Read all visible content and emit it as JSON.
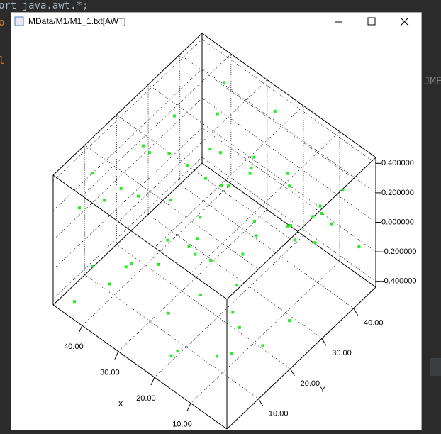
{
  "editor": {
    "fragments": [
      "ort java.awt.*;",
      "o",
      "l",
      "JME"
    ]
  },
  "window": {
    "title": "MData/M1/M1_1.txt[AWT]"
  },
  "chart_data": {
    "type": "scatter3d",
    "color": "#22ee22",
    "xlabel": "X",
    "ylabel": "Y",
    "xlim": [
      0,
      48
    ],
    "ylim": [
      0,
      47
    ],
    "zlim": [
      -0.44,
      0.44
    ],
    "xticks": [
      {
        "value": 10,
        "label": "10.00"
      },
      {
        "value": 20,
        "label": "20.00"
      },
      {
        "value": 30,
        "label": "30.00"
      },
      {
        "value": 40,
        "label": "40.00"
      }
    ],
    "yticks": [
      {
        "value": 10,
        "label": "10.00"
      },
      {
        "value": 20,
        "label": "20.00"
      },
      {
        "value": 30,
        "label": "30.00"
      },
      {
        "value": 40,
        "label": "40.00"
      }
    ],
    "zticks": [
      {
        "value": 0.4,
        "label": "0.400000"
      },
      {
        "value": 0.2,
        "label": "0.200000"
      },
      {
        "value": 0,
        "label": "0.000000"
      },
      {
        "value": -0.2,
        "label": "-0.200000"
      },
      {
        "value": -0.4,
        "label": "-0.400000"
      }
    ],
    "x": [
      3,
      7,
      12,
      18,
      25,
      31,
      38,
      44,
      46,
      2,
      9,
      15,
      21,
      28,
      34,
      40,
      45,
      5,
      11,
      17,
      23,
      29,
      35,
      41,
      47,
      1,
      8,
      14,
      20,
      26,
      32,
      37,
      43,
      6,
      13,
      19,
      24,
      30,
      36,
      42,
      4,
      10,
      16,
      22,
      27,
      33,
      39,
      44,
      2,
      12,
      18,
      26,
      35,
      41,
      46,
      7,
      15,
      23,
      31,
      38
    ],
    "y": [
      40,
      12,
      33,
      5,
      27,
      44,
      19,
      8,
      36,
      22,
      2,
      45,
      14,
      30,
      7,
      39,
      25,
      17,
      42,
      10,
      35,
      3,
      28,
      46,
      15,
      31,
      6,
      21,
      43,
      11,
      37,
      24,
      1,
      34,
      18,
      41,
      9,
      29,
      4,
      45,
      26,
      13,
      38,
      20,
      46,
      16,
      32,
      8,
      44,
      23,
      3,
      37,
      12,
      29,
      6,
      41,
      19,
      34,
      27,
      10
    ],
    "z": [
      0.31,
      -0.12,
      0.05,
      -0.33,
      0.22,
      -0.04,
      0.38,
      -0.27,
      0.14,
      -0.19,
      0.27,
      -0.36,
      0.09,
      0.33,
      -0.08,
      -0.24,
      0.18,
      -0.31,
      0.02,
      0.35,
      -0.15,
      0.11,
      -0.39,
      0.25,
      -0.02,
      0.37,
      -0.21,
      0.07,
      -0.29,
      0.16,
      -0.11,
      0.29,
      -0.35,
      0.2,
      -0.06,
      0.12,
      -0.26,
      0.34,
      -0.17,
      0.04,
      0.24,
      -0.37,
      0.15,
      -0.09,
      0.3,
      -0.23,
      0.01,
      0.36,
      -0.14,
      0.19,
      -0.32,
      0.08,
      0.28,
      -0.2,
      0.13,
      -0.01,
      -0.3,
      0.23,
      -0.1,
      0.32
    ]
  }
}
